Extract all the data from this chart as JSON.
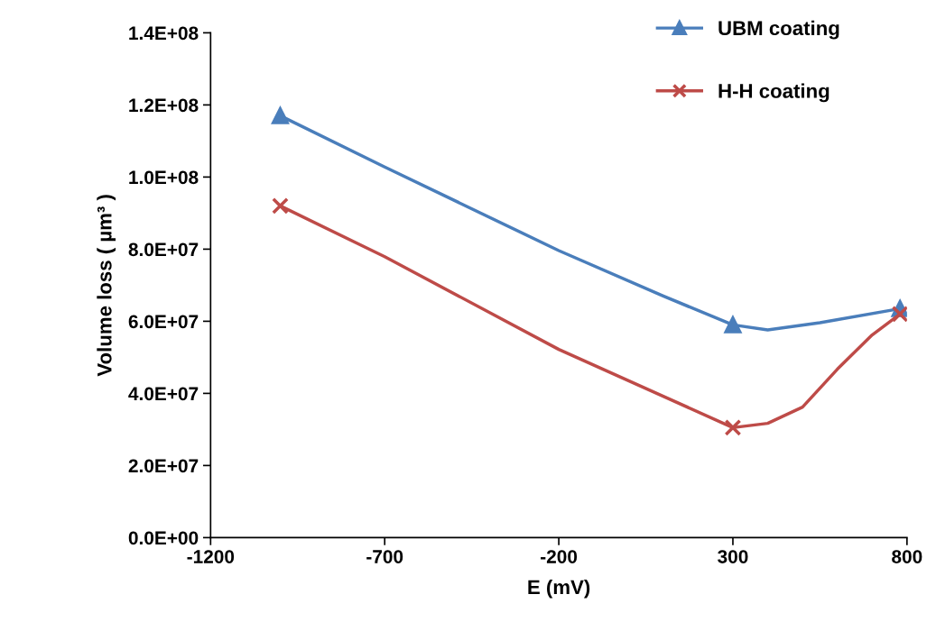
{
  "chart_data": {
    "type": "line",
    "xlabel": "E (mV)",
    "ylabel": "Volume loss ( µm³ )",
    "xlim": [
      -1200,
      800
    ],
    "xticks": [
      -1200,
      -700,
      -200,
      300,
      800
    ],
    "ylim": [
      0,
      140000000
    ],
    "yticks": [
      {
        "value": 0,
        "label": "0.0E+00"
      },
      {
        "value": 20000000,
        "label": "2.0E+07"
      },
      {
        "value": 40000000,
        "label": "4.0E+07"
      },
      {
        "value": 60000000,
        "label": "6.0E+07"
      },
      {
        "value": 80000000,
        "label": "8.0E+07"
      },
      {
        "value": 100000000,
        "label": "1.0E+08"
      },
      {
        "value": 120000000,
        "label": "1.2E+08"
      },
      {
        "value": 140000000,
        "label": "1.4E+08"
      }
    ],
    "series": [
      {
        "name": "UBM coating",
        "color": "#4a7ebb",
        "x": [
          -1000,
          -700,
          -200,
          100,
          300,
          400,
          550,
          780
        ],
        "values": [
          117000000,
          102800000,
          79600000,
          67000000,
          59000000,
          57600000,
          59600000,
          63500000
        ]
      },
      {
        "type": "scatter",
        "color": "#4a7ebb",
        "marker": "triangle",
        "x": [
          -1000,
          300,
          780
        ],
        "values": [
          117000000,
          59000000,
          63500000
        ]
      },
      {
        "name": "H-H coating",
        "color": "#be4b48",
        "x": [
          -1000,
          -700,
          -200,
          100,
          300,
          400,
          500,
          600,
          700,
          780
        ],
        "values": [
          92000000,
          77900000,
          52200000,
          39200000,
          30500000,
          31700000,
          36200000,
          46700000,
          56200000,
          62000000
        ]
      },
      {
        "type": "scatter",
        "color": "#be4b48",
        "marker": "cross",
        "x": [
          -1000,
          300,
          780
        ],
        "values": [
          92000000,
          30500000,
          62000000
        ]
      }
    ],
    "legend": "top right",
    "grid": false
  }
}
